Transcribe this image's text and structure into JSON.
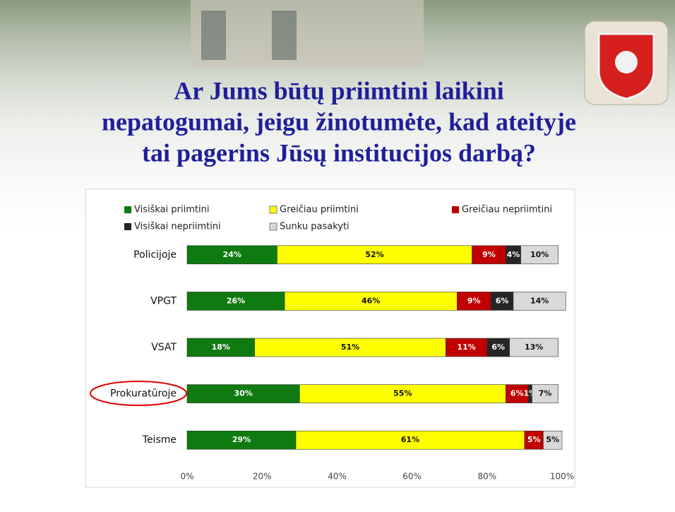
{
  "title_lines": [
    "Ar Jums būtų priimtini laikini",
    "nepatogumai, jeigu žinotumėte, kad ateityje",
    "tai pagerins Jūsų institucijos darbą?"
  ],
  "chart_data": {
    "type": "stacked-bar-horizontal",
    "categories": [
      "Policijoje",
      "VPGT",
      "VSAT",
      "Prokuratūroje",
      "Teisme"
    ],
    "series": [
      {
        "name": "Visiškai priimtini",
        "color": "#0f7a10",
        "values": [
          24,
          26,
          18,
          30,
          29
        ],
        "value_labels": [
          "24%",
          "26%",
          "18%",
          "30%",
          "29%"
        ]
      },
      {
        "name": "Greičiau priimtini",
        "color": "#ffff00",
        "values": [
          52,
          46,
          51,
          55,
          61
        ],
        "value_labels": [
          "52%",
          "46%",
          "51%",
          "55%",
          "61%"
        ]
      },
      {
        "name": "Greičiau nepriimtini",
        "color": "#c00000",
        "values": [
          9,
          9,
          11,
          6,
          5
        ],
        "value_labels": [
          "9%",
          "9%",
          "11%",
          "6%",
          "5%"
        ]
      },
      {
        "name": "Visiškai nepriimtini",
        "color": "#262626",
        "values": [
          4,
          6,
          6,
          1,
          null
        ],
        "value_labels": [
          "4%",
          "6%",
          "6%",
          "1%",
          null
        ]
      },
      {
        "name": "Sunku pasakyti",
        "color": "#d9d9d9",
        "values": [
          10,
          14,
          13,
          7,
          5
        ],
        "value_labels": [
          "10%",
          "14%",
          "13%",
          "7%",
          "5%"
        ]
      }
    ],
    "xlim": [
      0,
      100
    ],
    "xticks": [
      {
        "value": 0,
        "label": "0%"
      },
      {
        "value": 20,
        "label": "20%"
      },
      {
        "value": 40,
        "label": "40%"
      },
      {
        "value": 60,
        "label": "60%"
      },
      {
        "value": 80,
        "label": "80%"
      },
      {
        "value": 100,
        "label": "100%"
      }
    ],
    "legend": "top",
    "grid": false
  }
}
